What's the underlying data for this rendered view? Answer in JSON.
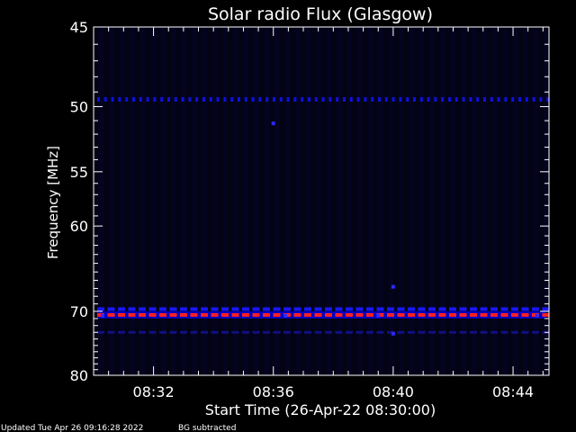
{
  "chart_data": {
    "type": "heatmap",
    "title": "Solar radio Flux (Glasgow)",
    "xlabel": "Start Time (26-Apr-22 08:30:00)",
    "ylabel": "Frequency [MHz]",
    "x_range_minutes_after_0830": [
      0,
      15.2
    ],
    "y_range_mhz": [
      45,
      80
    ],
    "x_ticks": [
      {
        "label": "08:32",
        "minute": 2
      },
      {
        "label": "08:36",
        "minute": 6
      },
      {
        "label": "08:40",
        "minute": 10
      },
      {
        "label": "08:44",
        "minute": 14
      }
    ],
    "y_ticks": [
      45,
      50,
      55,
      60,
      70,
      80
    ],
    "emission_lines": [
      {
        "frequency_mhz": 49.5,
        "intensity": "low",
        "style": "dotted",
        "color": "#1010e0"
      },
      {
        "frequency_mhz": 69.7,
        "intensity": "medium",
        "style": "dashed",
        "color": "#1818ff"
      },
      {
        "frequency_mhz": 70.5,
        "intensity": "high",
        "style": "dashed",
        "color": "#ff2020"
      },
      {
        "frequency_mhz": 73.0,
        "intensity": "low",
        "style": "dashed",
        "color": "#101080"
      }
    ],
    "isolated_points": [
      {
        "minute": 6.0,
        "frequency_mhz": 51.2
      },
      {
        "minute": 10.0,
        "frequency_mhz": 66.8
      },
      {
        "minute": 10.0,
        "frequency_mhz": 73.2
      },
      {
        "minute": 0.3,
        "frequency_mhz": 70.6
      },
      {
        "minute": 6.4,
        "frequency_mhz": 70.6
      },
      {
        "minute": 9.5,
        "frequency_mhz": 70.6
      },
      {
        "minute": 14.8,
        "frequency_mhz": 70.6
      }
    ]
  },
  "footer": {
    "updated": "Updated Tue Apr 26 09:16:28 2022",
    "bg_note": "BG subtracted"
  },
  "colors": {
    "background": "#000000",
    "plot_background": "#030315",
    "axis": "#ffffff",
    "low_intensity": "#1010e0",
    "high_intensity": "#ff2020"
  }
}
